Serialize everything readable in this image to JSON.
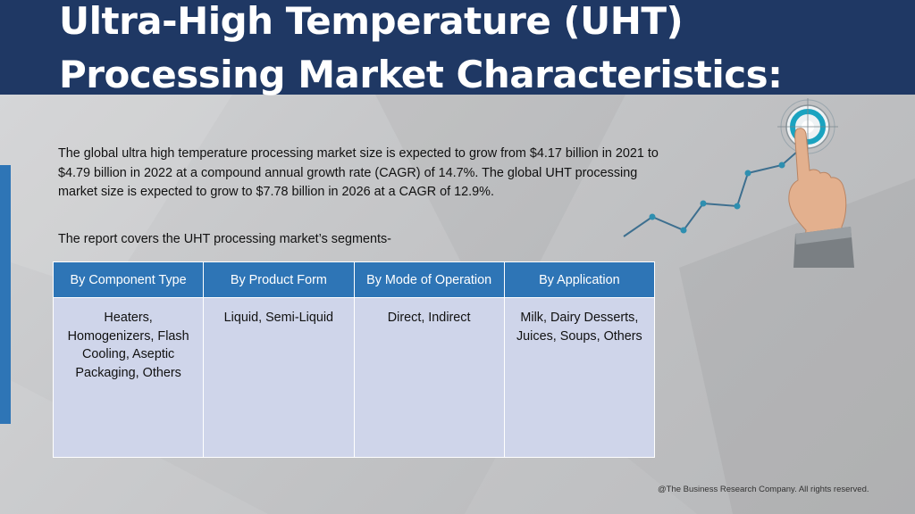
{
  "header": {
    "title": "Ultra-High Temperature (UHT) Processing Market Characteristics:"
  },
  "content": {
    "summary": "The global ultra high temperature processing market size is expected to grow from $4.17 billion in 2021 to $4.79 billion in 2022 at a compound annual growth rate (CAGR) of 14.7%. The global UHT processing market size is expected to grow to $7.78 billion in 2026 at a CAGR of 12.9%.",
    "segments_intro": "The report covers the UHT processing market’s segments-"
  },
  "segments_table": {
    "headers": [
      "By Component Type",
      "By Product Form",
      "By Mode of Operation",
      "By Application"
    ],
    "cells": [
      "Heaters, Homogenizers, Flash Cooling, Aseptic Packaging, Others",
      "Liquid, Semi-Liquid",
      "Direct, Indirect",
      "Milk, Dairy Desserts, Juices, Soups, Others"
    ]
  },
  "footer": {
    "copyright": "@The Business Research Company. All rights reserved."
  },
  "colors": {
    "header_bg": "#1f3864",
    "table_header_bg": "#2e75b6",
    "table_cell_bg": "#cfd5ea",
    "accent_bar": "#2e75b6",
    "graph_line": "#3d6f8f",
    "graph_point": "#2e8fb0"
  },
  "icons": {
    "graphic": "hand-touch-target-growth-graph-icon"
  }
}
